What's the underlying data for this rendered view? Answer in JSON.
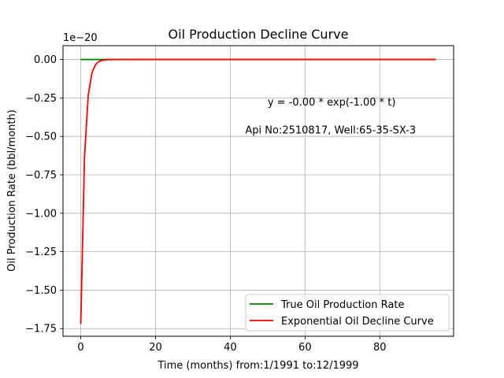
{
  "chart_data": {
    "type": "line",
    "title": "Oil Production Decline Curve",
    "xlabel": "Time (months) from:1/1991 to:12/1999",
    "ylabel": "Oil Production Rate (bbl/month)",
    "y_offset_text": "1e−20",
    "xlim": [
      -4.75,
      99.75
    ],
    "ylim": [
      -1.8,
      0.09
    ],
    "x_ticks": [
      0,
      20,
      40,
      60,
      80
    ],
    "x_tick_labels": [
      "0",
      "20",
      "40",
      "60",
      "80"
    ],
    "y_ticks": [
      0,
      -0.25,
      -0.5,
      -0.75,
      -1.0,
      -1.25,
      -1.5,
      -1.75
    ],
    "y_tick_labels": [
      "0.00",
      "−0.25",
      "−0.50",
      "−0.75",
      "−1.00",
      "−1.25",
      "−1.50",
      "−1.75"
    ],
    "grid": true,
    "legend_position": "lower-right",
    "annotations": [
      {
        "text": "y = -0.00 * exp(-1.00 * t)",
        "x": 50,
        "y": -0.3
      },
      {
        "text": "Api No:2510817, Well:65-35-SX-3",
        "x": 44,
        "y": -0.48
      }
    ],
    "series": [
      {
        "name": "True Oil Production Rate",
        "color": "#008000",
        "x": [
          0,
          1,
          2,
          3,
          4,
          5,
          6,
          7,
          8,
          9,
          10,
          15,
          20,
          30,
          40,
          50,
          60,
          70,
          80,
          90,
          95
        ],
        "y": [
          0,
          0,
          0,
          0,
          0,
          0,
          0,
          0,
          0,
          0,
          0,
          0,
          0,
          0,
          0,
          0,
          0,
          0,
          0,
          0,
          0
        ]
      },
      {
        "name": "Exponential Oil Decline Curve",
        "color": "#ff0000",
        "x": [
          0,
          1,
          2,
          3,
          4,
          5,
          6,
          7,
          8,
          9,
          10,
          15,
          20,
          30,
          40,
          50,
          60,
          70,
          80,
          90,
          95
        ],
        "y": [
          -1.72,
          -0.633,
          -0.233,
          -0.0856,
          -0.0315,
          -0.0116,
          -0.00426,
          -0.00157,
          -0.000577,
          -0.000212,
          -7.81e-05,
          0,
          0,
          0,
          0,
          0,
          0,
          0,
          0,
          0,
          0
        ]
      }
    ]
  }
}
